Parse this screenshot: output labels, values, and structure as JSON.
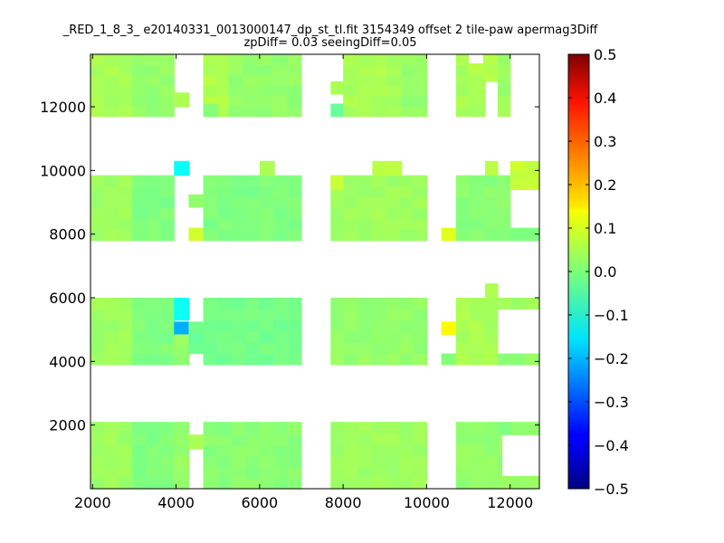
{
  "chart_data": {
    "type": "heatmap",
    "title": "_RED_1_8_3_ e20140331_0013000147_dp_st_tl.fit 3154349 offset 2 tile-paw apermag3Diff",
    "subtitle": "zpDiff= 0.03 seeingDiff=0.05",
    "xlabel": "",
    "ylabel": "",
    "xlim": [
      1950,
      12700
    ],
    "ylim": [
      0,
      13650
    ],
    "x_ticks": [
      "2000",
      "4000",
      "6000",
      "8000",
      "10000",
      "12000"
    ],
    "y_ticks": [
      "2000",
      "4000",
      "6000",
      "8000",
      "10000",
      "12000"
    ],
    "colorbar": {
      "range": [
        -0.5,
        0.5
      ],
      "colormap": "jet",
      "ticks": [
        "0.5",
        "0.4",
        "0.3",
        "0.2",
        "0.1",
        "0.0",
        "−0.1",
        "−0.2",
        "−0.3",
        "−0.4",
        "−0.5"
      ]
    },
    "cell_size": [
      340,
      340
    ],
    "regions": [
      {
        "x": [
          1950,
          2950
        ],
        "y": [
          0,
          2100
        ],
        "value": 0.03
      },
      {
        "x": [
          2950,
          3950
        ],
        "y": [
          0,
          2100
        ],
        "value": 0.0
      },
      {
        "x": [
          3950,
          4300
        ],
        "y": [
          0,
          2100
        ],
        "value": 0.02
      },
      {
        "x": [
          4650,
          7000
        ],
        "y": [
          0,
          1700
        ],
        "value": 0.01
      },
      {
        "x": [
          4300,
          4650
        ],
        "y": [
          1250,
          1700
        ],
        "value": 0.05
      },
      {
        "x": [
          4650,
          7000
        ],
        "y": [
          1700,
          2100
        ],
        "value": 0.01
      },
      {
        "x": [
          7700,
          10000
        ],
        "y": [
          0,
          2100
        ],
        "value": 0.03
      },
      {
        "x": [
          10700,
          11700
        ],
        "y": [
          0,
          2100
        ],
        "value": 0.02
      },
      {
        "x": [
          11700,
          12700
        ],
        "y": [
          1700,
          2100
        ],
        "value": 0.01
      },
      {
        "x": [
          11700,
          12700
        ],
        "y": [
          0,
          400
        ],
        "value": 0.02
      },
      {
        "x": [
          11700,
          11800
        ],
        "y": [
          400,
          1700
        ],
        "value": 0.02
      },
      {
        "x": [
          1950,
          2950
        ],
        "y": [
          3900,
          6000
        ],
        "value": 0.03
      },
      {
        "x": [
          2950,
          3950
        ],
        "y": [
          3900,
          6000
        ],
        "value": 0.0
      },
      {
        "x": [
          3950,
          4300
        ],
        "y": [
          5300,
          6000
        ],
        "value": -0.12
      },
      {
        "x": [
          3950,
          4300
        ],
        "y": [
          4850,
          5250
        ],
        "value": -0.2
      },
      {
        "x": [
          3950,
          4300
        ],
        "y": [
          3900,
          4850
        ],
        "value": 0.02
      },
      {
        "x": [
          4300,
          4650
        ],
        "y": [
          4250,
          5250
        ],
        "value": -0.02
      },
      {
        "x": [
          4650,
          7000
        ],
        "y": [
          3900,
          6000
        ],
        "value": -0.01
      },
      {
        "x": [
          7700,
          10000
        ],
        "y": [
          3900,
          6000
        ],
        "value": 0.02
      },
      {
        "x": [
          10350,
          10700
        ],
        "y": [
          4850,
          5250
        ],
        "value": 0.12
      },
      {
        "x": [
          10350,
          10700
        ],
        "y": [
          3900,
          4250
        ],
        "value": 0.0
      },
      {
        "x": [
          10700,
          11700
        ],
        "y": [
          3900,
          6000
        ],
        "value": 0.04
      },
      {
        "x": [
          11700,
          12700
        ],
        "y": [
          3900,
          4250
        ],
        "value": 0.02
      },
      {
        "x": [
          11700,
          12700
        ],
        "y": [
          5650,
          6000
        ],
        "value": 0.03
      },
      {
        "x": [
          11400,
          11700
        ],
        "y": [
          6000,
          6450
        ],
        "value": 0.04
      },
      {
        "x": [
          1950,
          2950
        ],
        "y": [
          7800,
          9850
        ],
        "value": 0.03
      },
      {
        "x": [
          2950,
          3950
        ],
        "y": [
          7800,
          9850
        ],
        "value": 0.0
      },
      {
        "x": [
          3950,
          4300
        ],
        "y": [
          9850,
          10300
        ],
        "value": -0.12
      },
      {
        "x": [
          4300,
          4650
        ],
        "y": [
          8850,
          9250
        ],
        "value": 0.01
      },
      {
        "x": [
          4300,
          4650
        ],
        "y": [
          7800,
          8200
        ],
        "value": 0.08
      },
      {
        "x": [
          4650,
          7000
        ],
        "y": [
          7800,
          9850
        ],
        "value": 0.0
      },
      {
        "x": [
          6000,
          6350
        ],
        "y": [
          9850,
          10300
        ],
        "value": 0.04
      },
      {
        "x": [
          7700,
          10000
        ],
        "y": [
          7800,
          9850
        ],
        "value": 0.03
      },
      {
        "x": [
          7700,
          8000
        ],
        "y": [
          9400,
          9850
        ],
        "value": 0.07
      },
      {
        "x": [
          8700,
          9400
        ],
        "y": [
          9850,
          10300
        ],
        "value": 0.05
      },
      {
        "x": [
          10350,
          10700
        ],
        "y": [
          7800,
          8200
        ],
        "value": 0.09
      },
      {
        "x": [
          10700,
          12000
        ],
        "y": [
          7800,
          9850
        ],
        "value": 0.01
      },
      {
        "x": [
          12000,
          12700
        ],
        "y": [
          7800,
          8200
        ],
        "value": 0.0
      },
      {
        "x": [
          11400,
          11700
        ],
        "y": [
          9850,
          10300
        ],
        "value": 0.05
      },
      {
        "x": [
          12000,
          12700
        ],
        "y": [
          9400,
          10300
        ],
        "value": 0.07
      },
      {
        "x": [
          1950,
          2950
        ],
        "y": [
          11700,
          13650
        ],
        "value": 0.04
      },
      {
        "x": [
          2950,
          3950
        ],
        "y": [
          11700,
          13650
        ],
        "value": 0.02
      },
      {
        "x": [
          3950,
          4300
        ],
        "y": [
          12000,
          12450
        ],
        "value": 0.05
      },
      {
        "x": [
          4650,
          5250
        ],
        "y": [
          11700,
          13650
        ],
        "value": 0.05
      },
      {
        "x": [
          5250,
          7000
        ],
        "y": [
          11700,
          13650
        ],
        "value": 0.02
      },
      {
        "x": [
          4650,
          5000
        ],
        "y": [
          11700,
          12100
        ],
        "value": 0.0
      },
      {
        "x": [
          7700,
          8000
        ],
        "y": [
          12400,
          12800
        ],
        "value": 0.05
      },
      {
        "x": [
          7700,
          8000
        ],
        "y": [
          11700,
          12100
        ],
        "value": -0.03
      },
      {
        "x": [
          8000,
          9400
        ],
        "y": [
          11700,
          13650
        ],
        "value": 0.04
      },
      {
        "x": [
          9400,
          10000
        ],
        "y": [
          11700,
          13650
        ],
        "value": 0.02
      },
      {
        "x": [
          9400,
          10000
        ],
        "y": [
          13300,
          13650
        ],
        "value": 0.03
      },
      {
        "x": [
          10700,
          11000
        ],
        "y": [
          11700,
          13650
        ],
        "value": 0.04
      },
      {
        "x": [
          11000,
          11700
        ],
        "y": [
          12800,
          13650
        ],
        "value": 0.05
      },
      {
        "x": [
          11000,
          11400
        ],
        "y": [
          11700,
          12800
        ],
        "value": 0.04
      },
      {
        "x": [
          11700,
          12000
        ],
        "y": [
          11700,
          13650
        ],
        "value": 0.03
      }
    ],
    "empty_cells": [
      {
        "x": [
          11400,
          11700
        ],
        "y": [
          12100,
          12450
        ]
      },
      {
        "x": [
          11000,
          11400
        ],
        "y": [
          13300,
          13650
        ]
      },
      {
        "x": [
          11400,
          11700
        ],
        "y": [
          11700,
          12100
        ]
      }
    ]
  }
}
